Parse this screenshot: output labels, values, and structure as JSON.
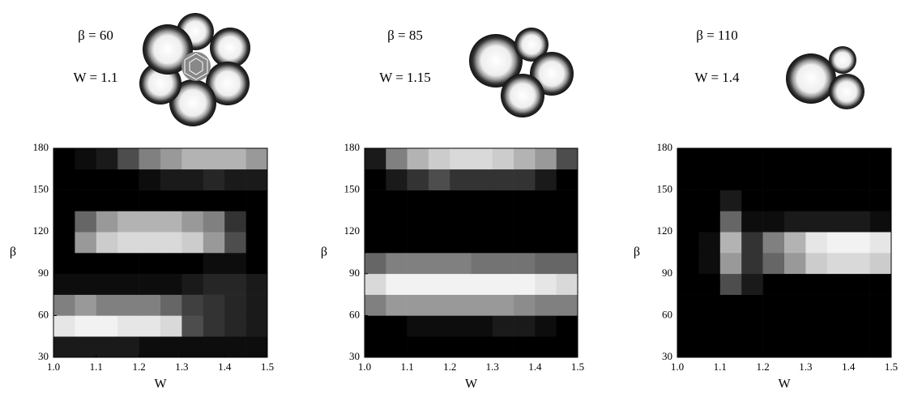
{
  "chart_data": [
    {
      "type": "heatmap",
      "annotations": [
        "β = 60",
        "W = 1.1"
      ],
      "xlabel": "W",
      "ylabel": "β",
      "color_low": "#000000",
      "color_high": "#ffffff",
      "xbins": [
        1.0,
        1.05,
        1.1,
        1.15,
        1.2,
        1.25,
        1.3,
        1.35,
        1.4,
        1.45,
        1.5
      ],
      "ybins": [
        30,
        45,
        60,
        75,
        90,
        105,
        120,
        135,
        150,
        165,
        180
      ],
      "z": [
        [
          0.1,
          0.1,
          0.1,
          0.1,
          0.05,
          0.05,
          0.05,
          0.05,
          0.05,
          0.05
        ],
        [
          0.9,
          0.95,
          0.95,
          0.9,
          0.9,
          0.85,
          0.3,
          0.2,
          0.15,
          0.1
        ],
        [
          0.5,
          0.6,
          0.5,
          0.5,
          0.5,
          0.4,
          0.25,
          0.2,
          0.15,
          0.1
        ],
        [
          0.05,
          0.05,
          0.05,
          0.05,
          0.05,
          0.05,
          0.1,
          0.15,
          0.15,
          0.1
        ],
        [
          0,
          0,
          0,
          0,
          0,
          0,
          0,
          0.05,
          0.05,
          0
        ],
        [
          0,
          0.6,
          0.8,
          0.85,
          0.85,
          0.85,
          0.8,
          0.6,
          0.3,
          0
        ],
        [
          0,
          0.4,
          0.6,
          0.7,
          0.7,
          0.7,
          0.6,
          0.5,
          0.2,
          0
        ],
        [
          0,
          0,
          0,
          0,
          0,
          0,
          0,
          0,
          0,
          0
        ],
        [
          0,
          0,
          0,
          0,
          0.05,
          0.1,
          0.1,
          0.15,
          0.1,
          0.1
        ],
        [
          0,
          0.05,
          0.1,
          0.3,
          0.5,
          0.6,
          0.7,
          0.7,
          0.7,
          0.6
        ]
      ],
      "xlim": [
        1.0,
        1.5
      ],
      "ylim": [
        30,
        180
      ],
      "xticks": [
        {
          "value": 1.0,
          "label": "1.0"
        },
        1.1,
        1.2,
        1.3,
        1.4,
        1.5
      ],
      "yticks": [
        30,
        60,
        90,
        120,
        150,
        180
      ]
    },
    {
      "type": "heatmap",
      "annotations": [
        "β = 85",
        "W = 1.15"
      ],
      "xlabel": "W",
      "ylabel": "β",
      "color_low": "#000000",
      "color_high": "#ffffff",
      "xbins": [
        1.0,
        1.05,
        1.1,
        1.15,
        1.2,
        1.25,
        1.3,
        1.35,
        1.4,
        1.45,
        1.5
      ],
      "ybins": [
        30,
        45,
        60,
        75,
        90,
        105,
        120,
        135,
        150,
        165,
        180
      ],
      "z": [
        [
          0,
          0,
          0,
          0,
          0,
          0,
          0,
          0,
          0,
          0
        ],
        [
          0,
          0,
          0.05,
          0.05,
          0.05,
          0.05,
          0.1,
          0.1,
          0.05,
          0
        ],
        [
          0.5,
          0.6,
          0.6,
          0.6,
          0.6,
          0.6,
          0.6,
          0.55,
          0.5,
          0.5
        ],
        [
          0.85,
          0.95,
          0.95,
          0.95,
          0.95,
          0.95,
          0.95,
          0.95,
          0.9,
          0.85
        ],
        [
          0.4,
          0.5,
          0.5,
          0.5,
          0.5,
          0.45,
          0.45,
          0.45,
          0.4,
          0.4
        ],
        [
          0,
          0,
          0,
          0,
          0,
          0,
          0,
          0,
          0,
          0
        ],
        [
          0,
          0,
          0,
          0,
          0,
          0,
          0,
          0,
          0,
          0
        ],
        [
          0,
          0,
          0,
          0,
          0,
          0,
          0,
          0,
          0,
          0
        ],
        [
          0,
          0.1,
          0.2,
          0.3,
          0.2,
          0.2,
          0.2,
          0.2,
          0.1,
          0
        ],
        [
          0.1,
          0.5,
          0.7,
          0.8,
          0.85,
          0.85,
          0.8,
          0.7,
          0.6,
          0.3
        ]
      ],
      "xlim": [
        1.0,
        1.5
      ],
      "ylim": [
        30,
        180
      ],
      "xticks": [
        {
          "value": 1.0,
          "label": "1.0"
        },
        1.1,
        1.2,
        1.3,
        1.4,
        1.5
      ],
      "yticks": [
        30,
        60,
        90,
        120,
        150,
        180
      ]
    },
    {
      "type": "heatmap",
      "annotations": [
        "β = 110",
        "W = 1.4"
      ],
      "xlabel": "W",
      "ylabel": "β",
      "color_low": "#000000",
      "color_high": "#ffffff",
      "xbins": [
        1.0,
        1.05,
        1.1,
        1.15,
        1.2,
        1.25,
        1.3,
        1.35,
        1.4,
        1.45,
        1.5
      ],
      "ybins": [
        30,
        45,
        60,
        75,
        90,
        105,
        120,
        135,
        150,
        165,
        180
      ],
      "z": [
        [
          0,
          0,
          0,
          0,
          0,
          0,
          0,
          0,
          0,
          0
        ],
        [
          0,
          0,
          0,
          0,
          0,
          0,
          0,
          0,
          0,
          0
        ],
        [
          0,
          0,
          0,
          0,
          0,
          0,
          0,
          0,
          0,
          0
        ],
        [
          0,
          0,
          0.3,
          0.1,
          0,
          0,
          0,
          0,
          0,
          0
        ],
        [
          0,
          0.05,
          0.6,
          0.2,
          0.4,
          0.6,
          0.8,
          0.85,
          0.85,
          0.8
        ],
        [
          0,
          0.05,
          0.7,
          0.2,
          0.5,
          0.7,
          0.9,
          0.95,
          0.95,
          0.9
        ],
        [
          0,
          0,
          0.4,
          0.05,
          0.05,
          0.1,
          0.1,
          0.1,
          0.1,
          0.05
        ],
        [
          0,
          0,
          0.1,
          0,
          0,
          0,
          0,
          0,
          0,
          0
        ],
        [
          0,
          0,
          0,
          0,
          0,
          0,
          0,
          0,
          0,
          0
        ],
        [
          0,
          0,
          0,
          0,
          0,
          0,
          0,
          0,
          0,
          0
        ]
      ],
      "xlim": [
        1.0,
        1.5
      ],
      "ylim": [
        30,
        180
      ],
      "xticks": [
        {
          "value": 1.0,
          "label": "1.0"
        },
        1.1,
        1.2,
        1.3,
        1.4,
        1.5
      ],
      "yticks": [
        30,
        60,
        90,
        120,
        150,
        180
      ]
    }
  ]
}
